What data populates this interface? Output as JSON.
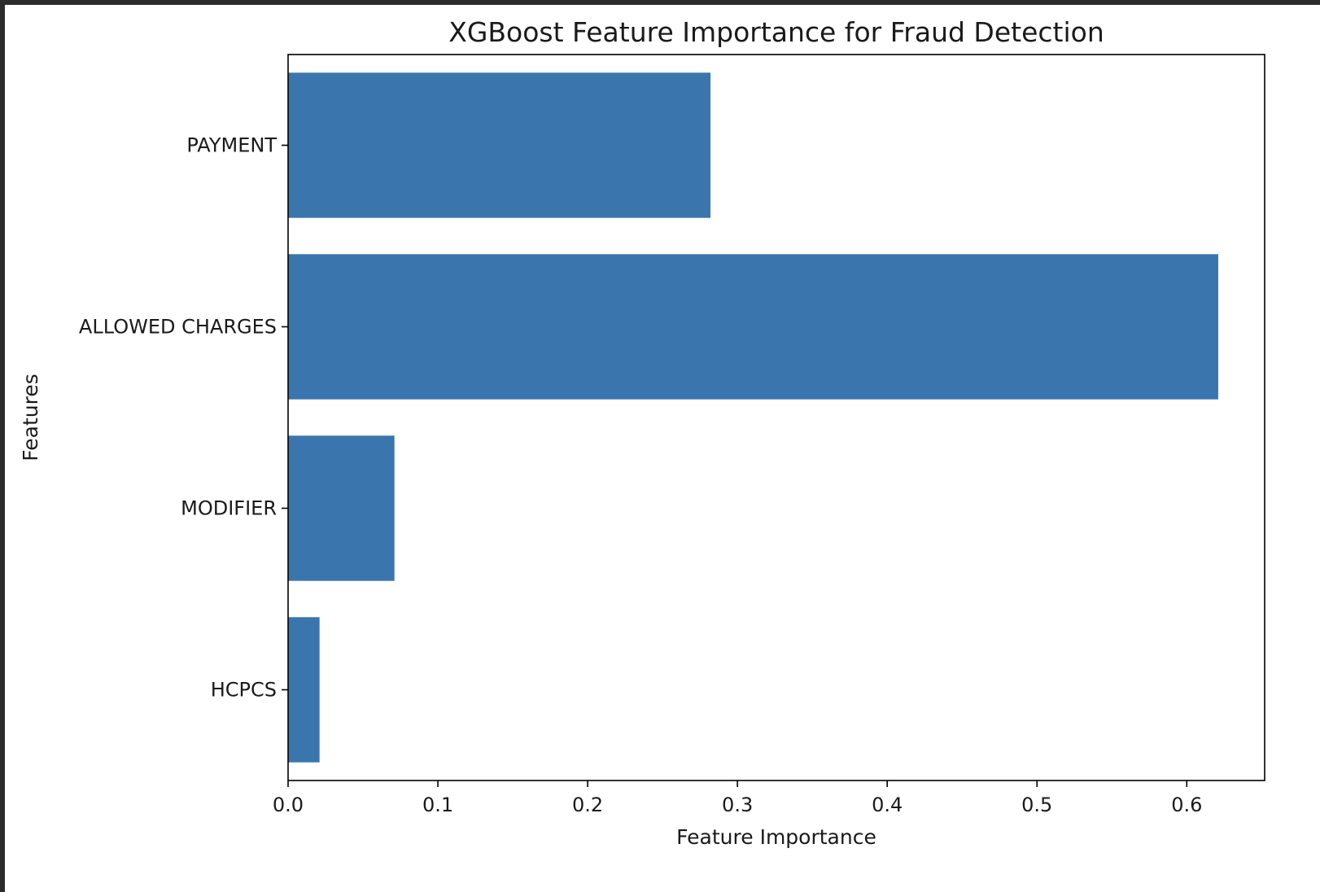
{
  "chart_data": {
    "type": "bar",
    "orientation": "horizontal",
    "title": "XGBoost Feature Importance for Fraud Detection",
    "xlabel": "Feature Importance",
    "ylabel": "Features",
    "categories": [
      "PAYMENT",
      "ALLOWED CHARGES",
      "MODIFIER",
      "HCPCS"
    ],
    "values": [
      0.282,
      0.621,
      0.071,
      0.021
    ],
    "xlim": [
      0,
      0.652
    ],
    "xticks": [
      0.0,
      0.1,
      0.2,
      0.3,
      0.4,
      0.5,
      0.6
    ],
    "xtick_labels": [
      "0.0",
      "0.1",
      "0.2",
      "0.3",
      "0.4",
      "0.5",
      "0.6"
    ],
    "bar_color": "#3a75ae",
    "grid": false,
    "legend": "none"
  }
}
